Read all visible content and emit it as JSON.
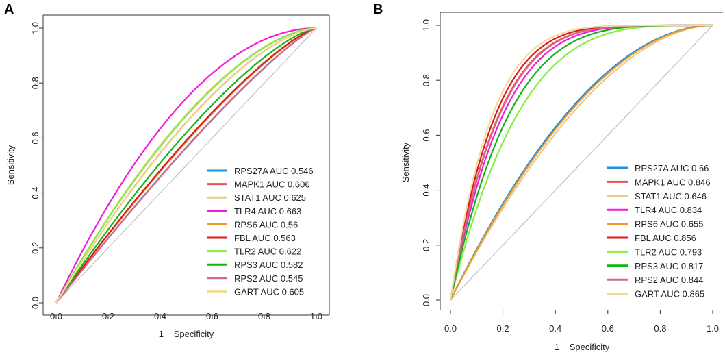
{
  "chart_data": [
    {
      "type": "line",
      "panel_label": "A",
      "xlabel": "1 − Specificity",
      "ylabel": "Sensitivity",
      "xlim": [
        0,
        1
      ],
      "ylim": [
        0,
        1
      ],
      "x_tick_labels": [
        "0.0",
        "0.2",
        "0.4",
        "0.6",
        "0.8",
        "1.0"
      ],
      "y_tick_labels": [
        "0.0",
        "0.2",
        "0.4",
        "0.6",
        "0.8",
        "1.0"
      ],
      "legend_position": "bottom-right",
      "reference_line": "diagonal",
      "series": [
        {
          "name": "RPS27A",
          "auc": 0.546,
          "label": "RPS27A AUC 0.546",
          "color": "#1f8fe0"
        },
        {
          "name": "MAPK1",
          "auc": 0.606,
          "label": "MAPK1 AUC 0.606",
          "color": "#e8534d"
        },
        {
          "name": "STAT1",
          "auc": 0.625,
          "label": "STAT1 AUC 0.625",
          "color": "#ecc98a"
        },
        {
          "name": "TLR4",
          "auc": 0.663,
          "label": "TLR4 AUC 0.663",
          "color": "#f01cd6"
        },
        {
          "name": "RPS6",
          "auc": 0.56,
          "label": "RPS6 AUC 0.56",
          "color": "#ee9a2c"
        },
        {
          "name": "FBL",
          "auc": 0.563,
          "label": "FBL AUC 0.563",
          "color": "#e0161a"
        },
        {
          "name": "TLR2",
          "auc": 0.622,
          "label": "TLR2 AUC 0.622",
          "color": "#86ee3c"
        },
        {
          "name": "RPS3",
          "auc": 0.582,
          "label": "RPS3 AUC 0.582",
          "color": "#12b317"
        },
        {
          "name": "RPS2",
          "auc": 0.545,
          "label": "RPS2 AUC 0.545",
          "color": "#cf6a8a"
        },
        {
          "name": "GART",
          "auc": 0.605,
          "label": "GART AUC 0.605",
          "color": "#f0dc9a"
        }
      ]
    },
    {
      "type": "line",
      "panel_label": "B",
      "xlabel": "1 − Specificity",
      "ylabel": "Sensitivity",
      "xlim": [
        0,
        1
      ],
      "ylim": [
        0,
        1
      ],
      "x_tick_labels": [
        "0.0",
        "0.2",
        "0.4",
        "0.6",
        "0.8",
        "1.0"
      ],
      "y_tick_labels": [
        "0.0",
        "0.2",
        "0.4",
        "0.6",
        "0.8",
        "1.0"
      ],
      "legend_position": "bottom-right",
      "reference_line": "diagonal",
      "series": [
        {
          "name": "RPS27A",
          "auc": 0.66,
          "label": "RPS27A AUC 0.66",
          "color": "#1f8fe0"
        },
        {
          "name": "MAPK1",
          "auc": 0.846,
          "label": "MAPK1 AUC 0.846",
          "color": "#e8534d"
        },
        {
          "name": "STAT1",
          "auc": 0.646,
          "label": "STAT1 AUC 0.646",
          "color": "#ecc98a"
        },
        {
          "name": "TLR4",
          "auc": 0.834,
          "label": "TLR4 AUC 0.834",
          "color": "#f01cd6"
        },
        {
          "name": "RPS6",
          "auc": 0.655,
          "label": "RPS6 AUC 0.655",
          "color": "#ee9a2c"
        },
        {
          "name": "FBL",
          "auc": 0.856,
          "label": "FBL AUC 0.856",
          "color": "#e0161a"
        },
        {
          "name": "TLR2",
          "auc": 0.793,
          "label": "TLR2 AUC 0.793",
          "color": "#86ee3c"
        },
        {
          "name": "RPS3",
          "auc": 0.817,
          "label": "RPS3 AUC 0.817",
          "color": "#12b317"
        },
        {
          "name": "RPS2",
          "auc": 0.844,
          "label": "RPS2 AUC 0.844",
          "color": "#cf6a8a"
        },
        {
          "name": "GART",
          "auc": 0.865,
          "label": "GART AUC 0.865",
          "color": "#f0dc9a"
        }
      ]
    }
  ]
}
